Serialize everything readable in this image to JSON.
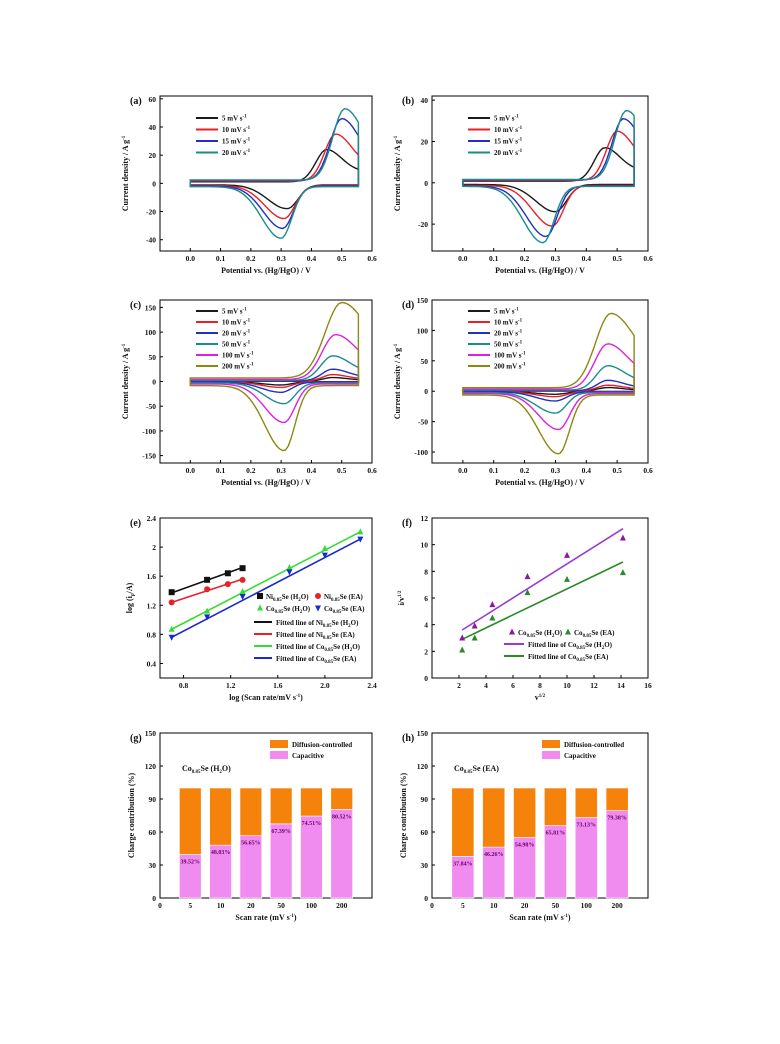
{
  "chart_data": [
    {
      "panel": "(a)",
      "type": "line",
      "xlabel": "Potential vs. (Hg/HgO) / V",
      "ylabel": "Current density / A g",
      "ylabel_sup": "-1",
      "xlim": [
        -0.1,
        0.6
      ],
      "ylim": [
        -48,
        62
      ],
      "xticks": [
        0.0,
        0.1,
        0.2,
        0.3,
        0.4,
        0.5,
        0.6
      ],
      "yticks": [
        -40,
        -20,
        0,
        20,
        40,
        60
      ],
      "legend_position": "top-left",
      "series": [
        {
          "name": "5 mV s",
          "sup": "-1",
          "color": "#1a1a1a",
          "peak_ox": [
            0.45,
            24
          ],
          "peak_red": [
            0.32,
            -18
          ],
          "end": 0.555
        },
        {
          "name": "10 mV s",
          "sup": "-1",
          "color": "#e8202a",
          "peak_ox": [
            0.48,
            35
          ],
          "peak_red": [
            0.31,
            -25
          ],
          "end": 0.555
        },
        {
          "name": "15 mV s",
          "sup": "-1",
          "color": "#2030c0",
          "peak_ox": [
            0.5,
            46
          ],
          "peak_red": [
            0.305,
            -32
          ],
          "end": 0.555
        },
        {
          "name": "20 mV s",
          "sup": "-1",
          "color": "#1a8c8c",
          "peak_ox": [
            0.51,
            53
          ],
          "peak_red": [
            0.3,
            -39
          ],
          "end": 0.555
        }
      ]
    },
    {
      "panel": "(b)",
      "type": "line",
      "xlabel": "Potential vs. (Hg/HgO) / V",
      "ylabel": "Current density / A g",
      "ylabel_sup": "-1",
      "xlim": [
        -0.1,
        0.6
      ],
      "ylim": [
        -33,
        42
      ],
      "xticks": [
        0.0,
        0.1,
        0.2,
        0.3,
        0.4,
        0.5,
        0.6
      ],
      "yticks": [
        -20,
        0,
        20,
        40
      ],
      "legend_position": "top-left",
      "series": [
        {
          "name": "5 mV s",
          "sup": "-1",
          "color": "#1a1a1a",
          "peak_ox": [
            0.46,
            17
          ],
          "peak_red": [
            0.3,
            -14
          ],
          "end": 0.555
        },
        {
          "name": "10 mV s",
          "sup": "-1",
          "color": "#e8202a",
          "peak_ox": [
            0.5,
            25
          ],
          "peak_red": [
            0.29,
            -21
          ],
          "end": 0.555
        },
        {
          "name": "15 mV s",
          "sup": "-1",
          "color": "#2030c0",
          "peak_ox": [
            0.52,
            31
          ],
          "peak_red": [
            0.27,
            -26
          ],
          "end": 0.555
        },
        {
          "name": "20 mV s",
          "sup": "-1",
          "color": "#1a8c8c",
          "peak_ox": [
            0.53,
            35
          ],
          "peak_red": [
            0.26,
            -29
          ],
          "end": 0.555
        }
      ]
    },
    {
      "panel": "(c)",
      "type": "line",
      "xlabel": "Potential vs. (Hg/HgO) / V",
      "ylabel": "Current density / A g",
      "ylabel_sup": "-1",
      "xlim": [
        -0.1,
        0.6
      ],
      "ylim": [
        -165,
        165
      ],
      "xticks": [
        0.0,
        0.1,
        0.2,
        0.3,
        0.4,
        0.5,
        0.6
      ],
      "yticks": [
        -150,
        -100,
        -50,
        0,
        50,
        100,
        150
      ],
      "legend_position": "top-left",
      "series": [
        {
          "name": "5 mV s",
          "sup": "-1",
          "color": "#1a1a1a",
          "peak_ox": [
            0.47,
            8
          ],
          "peak_red": [
            0.3,
            -7
          ],
          "end": 0.555
        },
        {
          "name": "10 mV s",
          "sup": "-1",
          "color": "#e8202a",
          "peak_ox": [
            0.47,
            14
          ],
          "peak_red": [
            0.3,
            -12
          ],
          "end": 0.555
        },
        {
          "name": "20 mV s",
          "sup": "-1",
          "color": "#2030c0",
          "peak_ox": [
            0.47,
            25
          ],
          "peak_red": [
            0.3,
            -22
          ],
          "end": 0.555
        },
        {
          "name": "50 mV s",
          "sup": "-1",
          "color": "#1a8c8c",
          "peak_ox": [
            0.47,
            52
          ],
          "peak_red": [
            0.31,
            -45
          ],
          "end": 0.555
        },
        {
          "name": "100 mV s",
          "sup": "-1",
          "color": "#e020e0",
          "peak_ox": [
            0.48,
            95
          ],
          "peak_red": [
            0.31,
            -83
          ],
          "end": 0.555
        },
        {
          "name": "200 mV s",
          "sup": "-1",
          "color": "#8a8a10",
          "peak_ox": [
            0.5,
            160
          ],
          "peak_red": [
            0.31,
            -140
          ],
          "end": 0.555
        }
      ]
    },
    {
      "panel": "(d)",
      "type": "line",
      "xlabel": "Potential vs. (Hg/HgO) / V",
      "ylabel": "Current density / A g",
      "ylabel_sup": "-1",
      "xlim": [
        -0.1,
        0.6
      ],
      "ylim": [
        -118,
        150
      ],
      "xticks": [
        0.0,
        0.1,
        0.2,
        0.3,
        0.4,
        0.5,
        0.6
      ],
      "yticks": [
        -100,
        -50,
        0,
        50,
        100,
        150
      ],
      "legend_position": "top-left",
      "series": [
        {
          "name": "5 mV s",
          "sup": "-1",
          "color": "#1a1a1a",
          "peak_ox": [
            0.47,
            6
          ],
          "peak_red": [
            0.3,
            -5
          ],
          "end": 0.555
        },
        {
          "name": "10 mV s",
          "sup": "-1",
          "color": "#e8202a",
          "peak_ox": [
            0.47,
            10
          ],
          "peak_red": [
            0.3,
            -9
          ],
          "end": 0.555
        },
        {
          "name": "20 mV s",
          "sup": "-1",
          "color": "#2030c0",
          "peak_ox": [
            0.47,
            18
          ],
          "peak_red": [
            0.3,
            -16
          ],
          "end": 0.555
        },
        {
          "name": "50 mV s",
          "sup": "-1",
          "color": "#1a8c8c",
          "peak_ox": [
            0.47,
            42
          ],
          "peak_red": [
            0.3,
            -36
          ],
          "end": 0.555
        },
        {
          "name": "100 mV s",
          "sup": "-1",
          "color": "#e020e0",
          "peak_ox": [
            0.47,
            78
          ],
          "peak_red": [
            0.31,
            -63
          ],
          "end": 0.555
        },
        {
          "name": "200 mV s",
          "sup": "-1",
          "color": "#8a8a10",
          "peak_ox": [
            0.48,
            128
          ],
          "peak_red": [
            0.31,
            -103
          ],
          "end": 0.555
        }
      ]
    },
    {
      "panel": "(e)",
      "type": "scatter",
      "xlabel": "log (Scan rate/mV s",
      "xlabel_sup": "-1",
      "xlabel_tail": ")",
      "ylabel": "log (i",
      "ylabel_sub": "p",
      "ylabel_tail": "/A)",
      "xlim": [
        0.6,
        2.4
      ],
      "ylim": [
        0.2,
        2.4
      ],
      "xticks": [
        0.8,
        1.2,
        1.6,
        2.0,
        2.4
      ],
      "yticks": [
        0.4,
        0.8,
        1.2,
        1.6,
        2.0,
        2.4
      ],
      "legend_position": "bottom-right",
      "series": [
        {
          "name_parts": [
            "Ni",
            "0.85",
            "Se (H",
            "2",
            "O)"
          ],
          "color": "#111111",
          "marker": "square",
          "x": [
            0.699,
            1.0,
            1.176,
            1.301
          ],
          "y": [
            1.38,
            1.55,
            1.64,
            1.71
          ]
        },
        {
          "name_parts": [
            "Ni",
            "0.85",
            "Se (EA)",
            "",
            ""
          ],
          "color": "#e8202a",
          "marker": "circle",
          "x": [
            0.699,
            1.0,
            1.176,
            1.301
          ],
          "y": [
            1.24,
            1.42,
            1.49,
            1.55
          ]
        },
        {
          "name_parts": [
            "Co",
            "0.85",
            "Se (H",
            "2",
            "O)"
          ],
          "color": "#33dd33",
          "marker": "triangle-up",
          "x": [
            0.699,
            1.0,
            1.301,
            1.699,
            2.0,
            2.301
          ],
          "y": [
            0.87,
            1.12,
            1.39,
            1.72,
            1.98,
            2.21
          ]
        },
        {
          "name_parts": [
            "Co",
            "0.85",
            "Se (EA)",
            "",
            ""
          ],
          "color": "#1a28d0",
          "marker": "triangle-down",
          "x": [
            0.699,
            1.0,
            1.301,
            1.699,
            2.0,
            2.301
          ],
          "y": [
            0.76,
            1.04,
            1.32,
            1.66,
            1.89,
            2.11
          ]
        }
      ],
      "fits": [
        {
          "name_parts": [
            "Fitted line of Ni",
            "0.85",
            "Se (H",
            "2",
            "O)"
          ],
          "color": "#111111",
          "x": [
            0.699,
            1.301
          ],
          "y": [
            1.37,
            1.72
          ]
        },
        {
          "name_parts": [
            "Fitted line of Ni",
            "0.85",
            "Se (EA)",
            "",
            ""
          ],
          "color": "#e8202a",
          "x": [
            0.699,
            1.301
          ],
          "y": [
            1.24,
            1.56
          ]
        },
        {
          "name_parts": [
            "Fitted line of Co",
            "0.85",
            "Se (H",
            "2",
            "O)"
          ],
          "color": "#33dd33",
          "x": [
            0.699,
            2.301
          ],
          "y": [
            0.87,
            2.21
          ]
        },
        {
          "name_parts": [
            "Fitted line of Co",
            "0.85",
            "Se (EA)",
            "",
            ""
          ],
          "color": "#1a28d0",
          "x": [
            0.699,
            2.301
          ],
          "y": [
            0.76,
            2.11
          ]
        }
      ]
    },
    {
      "panel": "(f)",
      "type": "scatter",
      "xlabel": "v",
      "xlabel_sup": "1/2",
      "ylabel": "i/v",
      "ylabel_sup": "1/2",
      "xlim": [
        0,
        16
      ],
      "ylim": [
        0,
        12
      ],
      "xticks": [
        2,
        4,
        6,
        8,
        10,
        12,
        14,
        16
      ],
      "yticks": [
        0,
        2,
        4,
        6,
        8,
        10,
        12
      ],
      "legend_position": "bottom-right",
      "series": [
        {
          "name_parts": [
            "Co",
            "0.85",
            "Se (H",
            "2",
            "O)"
          ],
          "color": "#8a1a9a",
          "marker": "triangle-up",
          "x": [
            2.236,
            3.162,
            4.472,
            7.071,
            10.0,
            14.142
          ],
          "y": [
            3.0,
            3.9,
            5.5,
            7.6,
            9.2,
            10.5
          ]
        },
        {
          "name_parts": [
            "Co",
            "0.85",
            "Se (EA)",
            "",
            ""
          ],
          "color": "#2a8a2a",
          "marker": "triangle-up",
          "x": [
            2.236,
            3.162,
            4.472,
            7.071,
            10.0,
            14.142
          ],
          "y": [
            2.1,
            3.0,
            4.5,
            6.4,
            7.4,
            7.9
          ]
        }
      ],
      "fits": [
        {
          "name_parts": [
            "Fitted line of Co",
            "0.85",
            "Se (H",
            "2",
            "O)"
          ],
          "color": "#9a3ad0",
          "x": [
            2.236,
            14.142
          ],
          "y": [
            3.6,
            11.2
          ]
        },
        {
          "name_parts": [
            "Fitted line of Co",
            "0.85",
            "Se (EA)",
            "",
            ""
          ],
          "color": "#2a8a2a",
          "x": [
            2.236,
            14.142
          ],
          "y": [
            2.9,
            8.7
          ]
        }
      ]
    },
    {
      "panel": "(g)",
      "type": "bar",
      "stacked": true,
      "xlabel": "Scan rate (mV s",
      "xlabel_sup": "-1",
      "xlabel_tail": ")",
      "ylabel": "Charge contribution (%)",
      "ylim": [
        0,
        150
      ],
      "yticks": [
        0,
        30,
        60,
        90,
        120,
        150
      ],
      "xticks_numeric": [
        0,
        1,
        2,
        3,
        4,
        5,
        6,
        7
      ],
      "categories": [
        "5",
        "10",
        "20",
        "50",
        "100",
        "200"
      ],
      "sample_parts": [
        "Co",
        "0.85",
        "Se (H",
        "2",
        "O)"
      ],
      "legend_position": "top-right",
      "series": [
        {
          "name": "Capacitive",
          "color": "#f08cf0",
          "values": [
            39.52,
            48.03,
            56.65,
            67.39,
            74.51,
            80.52
          ]
        },
        {
          "name": "Diffusion-controlled",
          "color": "#f5820a",
          "values": [
            60.48,
            51.97,
            43.35,
            32.61,
            25.49,
            19.48
          ]
        }
      ],
      "data_labels": [
        "39.52%",
        "48.03%",
        "56.65%",
        "67.39%",
        "74.51%",
        "80.52%"
      ]
    },
    {
      "panel": "(h)",
      "type": "bar",
      "stacked": true,
      "xlabel": "Scan rate (mV s",
      "xlabel_sup": "-1",
      "xlabel_tail": ")",
      "ylabel": "Charge contribution (%)",
      "ylim": [
        0,
        150
      ],
      "yticks": [
        0,
        30,
        60,
        90,
        120,
        150
      ],
      "xticks_numeric": [
        0,
        1,
        2,
        3,
        4,
        5,
        6,
        7
      ],
      "categories": [
        "5",
        "10",
        "20",
        "50",
        "100",
        "200"
      ],
      "sample_parts": [
        "Co",
        "0.85",
        "Se (EA)",
        "",
        ""
      ],
      "legend_position": "top-right",
      "series": [
        {
          "name": "Capacitive",
          "color": "#f08cf0",
          "values": [
            37.84,
            46.26,
            54.98,
            65.81,
            73.13,
            79.38
          ]
        },
        {
          "name": "Diffusion-controlled",
          "color": "#f5820a",
          "values": [
            62.16,
            53.74,
            45.02,
            34.19,
            26.87,
            20.62
          ]
        }
      ],
      "data_labels": [
        "37.84%",
        "46.26%",
        "54.98%",
        "65.81%",
        "73.13%",
        "79.38%"
      ]
    }
  ]
}
